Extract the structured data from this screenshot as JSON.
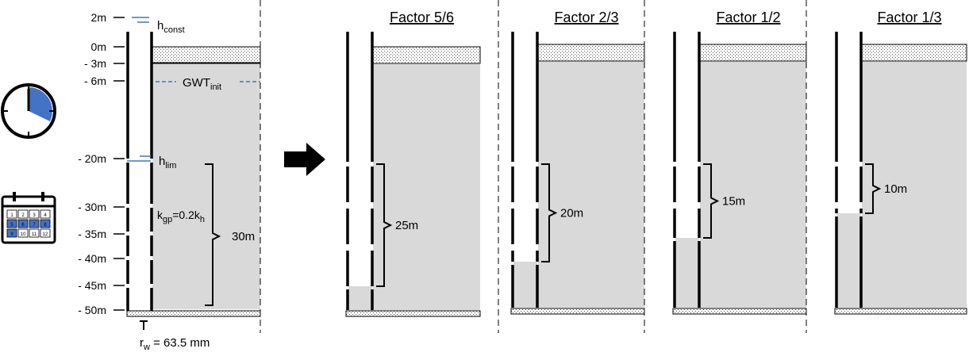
{
  "colors": {
    "clock_fill": "#4472c4",
    "soil_fill": "#d9d9d9",
    "head_line": "#4472c4",
    "calendar_highlight": "#4472c4"
  },
  "icons": [
    "clock-icon",
    "calendar-icon",
    "right-arrow-icon"
  ],
  "calendar": {
    "days": [
      "1",
      "2",
      "3",
      "4",
      "5",
      "6",
      "7",
      "8",
      "9",
      "10",
      "11",
      "12"
    ],
    "highlighted": [
      "5",
      "6",
      "7",
      "8",
      "9"
    ]
  },
  "depth_labels": [
    "2m",
    "0m",
    "- 3m",
    "- 6m",
    "- 20m",
    "- 30m",
    "- 35m",
    "- 40m",
    "- 45m",
    "- 50m"
  ],
  "labels": {
    "h_const_main": "h",
    "h_const_sub": "const",
    "gwt_main": "GWT",
    "gwt_sub": "init",
    "h_lim_main": "h",
    "h_lim_sub": "lim",
    "kgp_a": "k",
    "kgp_b": "gp",
    "kgp_c": "=0.2k",
    "kgp_d": "h",
    "screen_length": "30m",
    "rw_main": "r",
    "rw_sub": "w",
    "rw_value": " = 63.5 mm"
  },
  "factors": [
    {
      "title": "Factor 5/6",
      "screen_length": "25m",
      "screen_fraction": 0.8333
    },
    {
      "title": "Factor 2/3",
      "screen_length": "20m",
      "screen_fraction": 0.6667
    },
    {
      "title": "Factor 1/2",
      "screen_length": "15m",
      "screen_fraction": 0.5
    },
    {
      "title": "Factor 1/3",
      "screen_length": "10m",
      "screen_fraction": 0.3333
    }
  ]
}
